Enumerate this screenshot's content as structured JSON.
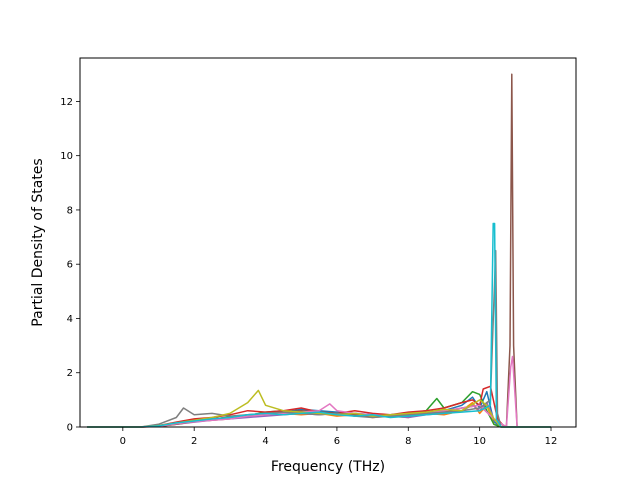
{
  "chart_data": {
    "type": "line",
    "title": "",
    "xlabel": "Frequency (THz)",
    "ylabel": "Partial Density of States",
    "xlim": [
      -1.2,
      12.7
    ],
    "ylim": [
      0,
      13.6
    ],
    "x_ticks": [
      0,
      2,
      4,
      6,
      8,
      10,
      12
    ],
    "y_ticks": [
      0,
      2,
      4,
      6,
      8,
      10,
      12
    ],
    "x_tick_labels": [
      "0",
      "2",
      "4",
      "6",
      "8",
      "10",
      "12"
    ],
    "y_tick_labels": [
      "0",
      "2",
      "4",
      "6",
      "8",
      "10",
      "12"
    ],
    "grid": false,
    "legend": "none",
    "series": [
      {
        "color": "#1f77b4",
        "x": [
          -1.0,
          0.5,
          1.0,
          1.5,
          2.0,
          2.5,
          3.0,
          3.5,
          4.0,
          4.5,
          5.0,
          5.5,
          6.0,
          6.5,
          7.0,
          7.5,
          8.0,
          8.5,
          9.0,
          9.5,
          9.8,
          10.0,
          10.2,
          10.4,
          10.6,
          10.8,
          11.0,
          12.0
        ],
        "y": [
          0,
          0,
          0.05,
          0.15,
          0.25,
          0.3,
          0.35,
          0.45,
          0.5,
          0.55,
          0.65,
          0.6,
          0.55,
          0.5,
          0.45,
          0.4,
          0.45,
          0.55,
          0.6,
          0.8,
          1.1,
          0.7,
          1.3,
          0.2,
          0,
          0,
          0,
          0
        ]
      },
      {
        "color": "#ff7f0e",
        "x": [
          -1.0,
          0.5,
          1.0,
          1.5,
          2.0,
          2.5,
          3.0,
          3.5,
          4.0,
          4.5,
          5.0,
          5.5,
          6.0,
          6.5,
          7.0,
          7.5,
          8.0,
          8.5,
          9.0,
          9.5,
          9.8,
          10.0,
          10.2,
          10.4,
          10.6,
          10.8,
          11.0,
          12.0
        ],
        "y": [
          0,
          0,
          0.03,
          0.1,
          0.2,
          0.25,
          0.3,
          0.4,
          0.45,
          0.5,
          0.45,
          0.5,
          0.4,
          0.45,
          0.35,
          0.4,
          0.35,
          0.5,
          0.45,
          0.6,
          0.9,
          0.5,
          0.8,
          0.1,
          0,
          0,
          0,
          0
        ]
      },
      {
        "color": "#2ca02c",
        "x": [
          -1.0,
          0.5,
          1.0,
          1.5,
          2.0,
          2.5,
          3.0,
          3.5,
          4.0,
          4.5,
          5.0,
          5.5,
          6.0,
          6.5,
          7.0,
          7.5,
          8.0,
          8.5,
          8.8,
          9.0,
          9.5,
          9.8,
          10.0,
          10.2,
          10.4,
          10.6,
          11.0,
          12.0
        ],
        "y": [
          0,
          0,
          0.04,
          0.12,
          0.22,
          0.28,
          0.38,
          0.42,
          0.55,
          0.6,
          0.55,
          0.5,
          0.45,
          0.5,
          0.4,
          0.45,
          0.5,
          0.6,
          1.05,
          0.7,
          0.9,
          1.3,
          1.2,
          0.6,
          0.1,
          0,
          0,
          0
        ]
      },
      {
        "color": "#d62728",
        "x": [
          -1.0,
          0.5,
          1.0,
          1.5,
          2.0,
          2.5,
          3.0,
          3.5,
          4.0,
          4.5,
          5.0,
          5.5,
          6.0,
          6.5,
          7.0,
          7.5,
          8.0,
          8.5,
          9.0,
          9.5,
          9.8,
          10.0,
          10.1,
          10.3,
          10.5,
          10.7,
          11.0,
          12.0
        ],
        "y": [
          0,
          0,
          0.05,
          0.18,
          0.3,
          0.35,
          0.45,
          0.6,
          0.55,
          0.6,
          0.7,
          0.55,
          0.5,
          0.6,
          0.5,
          0.45,
          0.55,
          0.6,
          0.7,
          0.9,
          1.0,
          0.8,
          1.4,
          1.5,
          0.3,
          0,
          0,
          0
        ]
      },
      {
        "color": "#9467bd",
        "x": [
          -1.0,
          0.5,
          1.0,
          1.5,
          2.0,
          2.5,
          3.0,
          3.5,
          4.0,
          4.5,
          5.0,
          5.5,
          6.0,
          6.5,
          7.0,
          7.5,
          8.0,
          8.5,
          9.0,
          9.5,
          9.8,
          10.0,
          10.2,
          10.4,
          10.6,
          10.8,
          11.0,
          12.0
        ],
        "y": [
          0,
          0,
          0.03,
          0.1,
          0.18,
          0.25,
          0.3,
          0.35,
          0.4,
          0.45,
          0.5,
          0.45,
          0.5,
          0.4,
          0.45,
          0.4,
          0.35,
          0.45,
          0.5,
          0.6,
          0.8,
          0.6,
          0.9,
          0.3,
          0,
          0,
          0,
          0
        ]
      },
      {
        "color": "#8c564b",
        "x": [
          -1.0,
          0.5,
          1.0,
          1.5,
          2.0,
          2.5,
          3.0,
          3.5,
          4.0,
          4.5,
          5.0,
          5.5,
          6.0,
          6.5,
          7.0,
          7.5,
          8.0,
          8.5,
          9.0,
          9.5,
          10.0,
          10.4,
          10.75,
          10.85,
          10.9,
          10.95,
          11.05,
          12.0
        ],
        "y": [
          0,
          0,
          0.02,
          0.1,
          0.2,
          0.3,
          0.35,
          0.4,
          0.5,
          0.55,
          0.6,
          0.55,
          0.5,
          0.45,
          0.4,
          0.45,
          0.4,
          0.5,
          0.55,
          0.7,
          0.8,
          0.3,
          0,
          3.0,
          13.0,
          3.0,
          0,
          0
        ]
      },
      {
        "color": "#e377c2",
        "x": [
          -1.0,
          0.5,
          1.0,
          1.5,
          2.0,
          2.5,
          3.0,
          3.5,
          4.0,
          4.5,
          5.0,
          5.5,
          5.8,
          6.0,
          6.5,
          7.0,
          7.5,
          8.0,
          8.5,
          9.0,
          9.5,
          10.0,
          10.4,
          10.75,
          10.87,
          10.92,
          11.05,
          12.0
        ],
        "y": [
          0,
          0,
          0.03,
          0.12,
          0.2,
          0.25,
          0.3,
          0.4,
          0.45,
          0.5,
          0.55,
          0.6,
          0.85,
          0.6,
          0.5,
          0.45,
          0.4,
          0.45,
          0.5,
          0.6,
          0.7,
          0.8,
          0.3,
          0,
          2.2,
          2.6,
          0,
          0
        ]
      },
      {
        "color": "#7f7f7f",
        "x": [
          -1.0,
          0.5,
          1.0,
          1.5,
          1.7,
          2.0,
          2.5,
          3.0,
          3.5,
          4.0,
          4.5,
          5.0,
          5.5,
          6.0,
          6.5,
          7.0,
          7.5,
          8.0,
          8.5,
          9.0,
          9.5,
          10.0,
          10.3,
          10.45,
          10.5,
          10.6,
          11.0,
          12.0
        ],
        "y": [
          0,
          0,
          0.1,
          0.35,
          0.7,
          0.45,
          0.5,
          0.4,
          0.45,
          0.5,
          0.55,
          0.5,
          0.45,
          0.5,
          0.4,
          0.35,
          0.4,
          0.45,
          0.5,
          0.55,
          0.6,
          0.7,
          1.0,
          6.5,
          0.5,
          0,
          0,
          0
        ]
      },
      {
        "color": "#bcbd22",
        "x": [
          -1.0,
          0.5,
          1.0,
          1.5,
          2.0,
          2.5,
          3.0,
          3.5,
          3.8,
          4.0,
          4.5,
          5.0,
          5.5,
          6.0,
          6.5,
          7.0,
          7.5,
          8.0,
          8.5,
          9.0,
          9.5,
          10.0,
          10.2,
          10.4,
          10.6,
          10.8,
          11.0,
          12.0
        ],
        "y": [
          0,
          0,
          0.05,
          0.15,
          0.25,
          0.35,
          0.5,
          0.9,
          1.35,
          0.8,
          0.6,
          0.55,
          0.5,
          0.45,
          0.5,
          0.4,
          0.45,
          0.5,
          0.55,
          0.65,
          0.6,
          1.0,
          0.8,
          0.3,
          0,
          0,
          0,
          0
        ]
      },
      {
        "color": "#17becf",
        "x": [
          -1.0,
          0.5,
          1.0,
          1.5,
          2.0,
          2.5,
          3.0,
          3.5,
          4.0,
          4.5,
          5.0,
          5.5,
          6.0,
          6.5,
          7.0,
          7.5,
          8.0,
          8.5,
          9.0,
          9.5,
          10.0,
          10.3,
          10.38,
          10.42,
          10.47,
          10.6,
          11.0,
          12.0
        ],
        "y": [
          0,
          0,
          0.04,
          0.15,
          0.22,
          0.3,
          0.35,
          0.45,
          0.5,
          0.45,
          0.5,
          0.55,
          0.45,
          0.4,
          0.45,
          0.35,
          0.4,
          0.45,
          0.5,
          0.55,
          0.6,
          0.8,
          7.5,
          7.5,
          0.3,
          0,
          0,
          0
        ]
      }
    ]
  }
}
